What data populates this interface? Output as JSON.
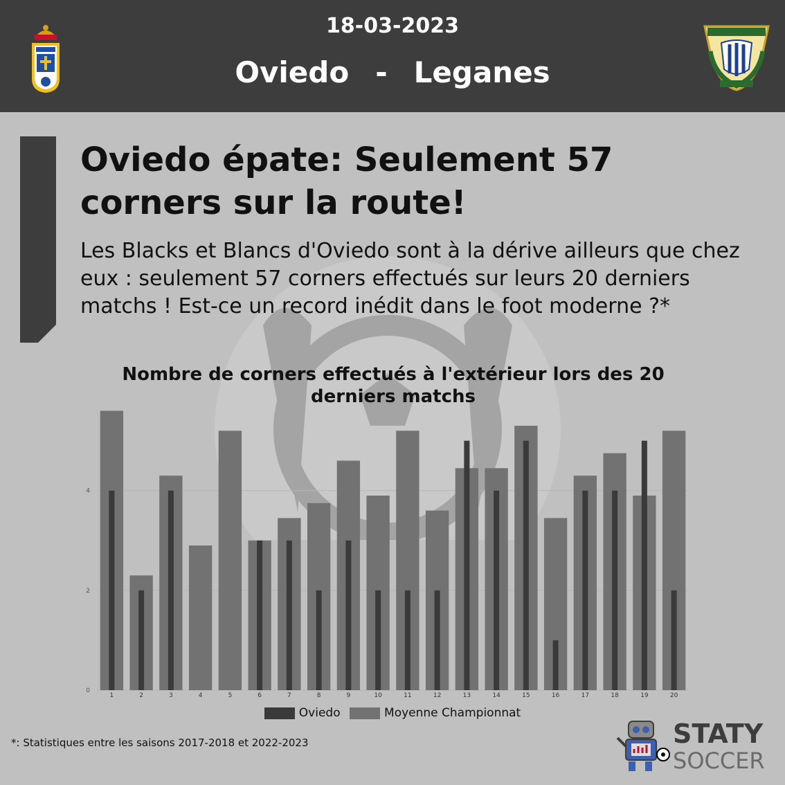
{
  "header": {
    "date": "18-03-2023",
    "home_team": "Oviedo",
    "separator": "-",
    "away_team": "Leganes",
    "background": "#3d3d3d"
  },
  "article": {
    "headline": "Oviedo épate: Seulement 57 corners sur la route!",
    "subtitle": "Les Blacks et Blancs d'Oviedo sont à la dérive ailleurs que chez eux : seulement 57 corners effectués sur leurs 20 derniers matchs ! Est-ce un record inédit dans le foot moderne ?*"
  },
  "chart_data": {
    "type": "bar",
    "title": "Nombre de corners effectués à l'extérieur lors des 20 derniers matchs",
    "categories": [
      "1",
      "2",
      "3",
      "4",
      "5",
      "6",
      "7",
      "8",
      "9",
      "10",
      "11",
      "12",
      "13",
      "14",
      "15",
      "16",
      "17",
      "18",
      "19",
      "20"
    ],
    "series": [
      {
        "name": "Oviedo",
        "color": "#3a3a3a",
        "values": [
          4,
          2,
          4,
          0,
          0,
          3,
          3,
          2,
          3,
          2,
          2,
          2,
          5,
          4,
          5,
          1,
          4,
          4,
          5,
          2
        ]
      },
      {
        "name": "Moyenne Championnat",
        "color": "#727272",
        "values": [
          5.6,
          2.3,
          4.3,
          2.9,
          5.2,
          3.0,
          3.45,
          3.75,
          4.6,
          3.9,
          5.2,
          3.6,
          4.45,
          4.45,
          5.3,
          3.45,
          4.3,
          4.75,
          3.9,
          5.2
        ]
      }
    ],
    "y_ticks": [
      0,
      2,
      4
    ],
    "ylim": [
      0,
      5.8
    ],
    "grid": true,
    "legend_position": "bottom"
  },
  "footnote": "*: Statistiques entre les saisons 2017-2018 et 2022-2023",
  "brand": {
    "word1": "STATY",
    "word2": "SOCCER"
  }
}
